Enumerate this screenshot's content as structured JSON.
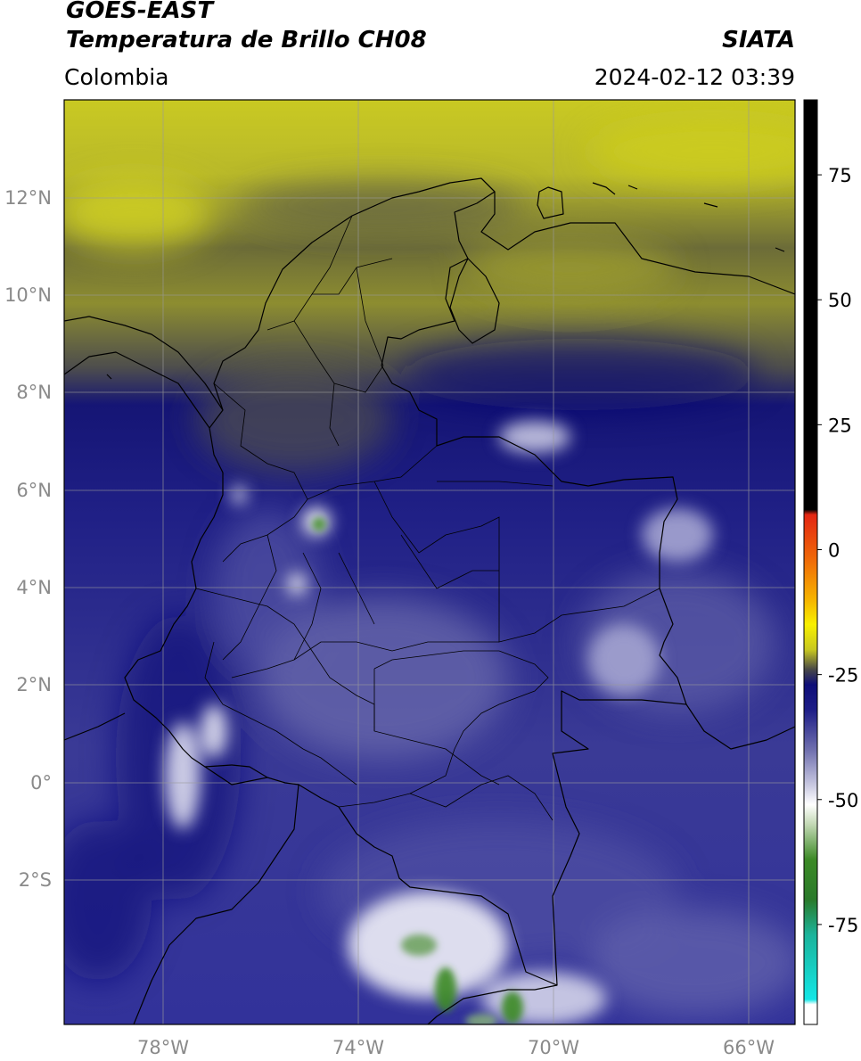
{
  "header": {
    "source": "GOES-EAST",
    "product": "Temperatura de Brillo CH08",
    "organization": "SIATA",
    "region": "Colombia",
    "timestamp": "2024-02-12 03:39"
  },
  "map": {
    "longitude_labels": [
      "78°W",
      "74°W",
      "70°W",
      "66°W"
    ],
    "latitude_labels": [
      "12°N",
      "10°N",
      "8°N",
      "6°N",
      "4°N",
      "2°N",
      "0°",
      "2°S"
    ],
    "longitude_range": [
      -80,
      -65
    ],
    "latitude_range": [
      -5,
      14
    ],
    "gridlines": true
  },
  "colorbar": {
    "unit_label": "",
    "tick_labels": [
      "75",
      "50",
      "25",
      "0",
      "-25",
      "-50",
      "-75"
    ],
    "tick_values": [
      75,
      50,
      25,
      0,
      -25,
      -50,
      -75
    ],
    "range": [
      -95,
      90
    ],
    "stops": [
      {
        "value": 90,
        "color": "#000000"
      },
      {
        "value": 8,
        "color": "#000000"
      },
      {
        "value": 7,
        "color": "#e32512"
      },
      {
        "value": -2,
        "color": "#f06a08"
      },
      {
        "value": -10,
        "color": "#f6b400"
      },
      {
        "value": -15,
        "color": "#f8f000"
      },
      {
        "value": -20,
        "color": "#c8c820"
      },
      {
        "value": -24,
        "color": "#474747"
      },
      {
        "value": -27,
        "color": "#0e0e78"
      },
      {
        "value": -32,
        "color": "#1d1d87"
      },
      {
        "value": -40,
        "color": "#6f6fae"
      },
      {
        "value": -47,
        "color": "#c7c7e0"
      },
      {
        "value": -51,
        "color": "#ffffff"
      },
      {
        "value": -55,
        "color": "#c2d8b4"
      },
      {
        "value": -62,
        "color": "#3c8a26"
      },
      {
        "value": -70,
        "color": "#2a7a2a"
      },
      {
        "value": -77,
        "color": "#1bb39a"
      },
      {
        "value": -90,
        "color": "#13e6e6"
      },
      {
        "value": -91,
        "color": "#ffffff"
      },
      {
        "value": -95,
        "color": "#ffffff"
      }
    ]
  },
  "colors": {
    "cloud_warm": "#c8c820",
    "cloud_cold": "#1d1d87",
    "border": "#000000",
    "grid": "#9a9a9a"
  }
}
